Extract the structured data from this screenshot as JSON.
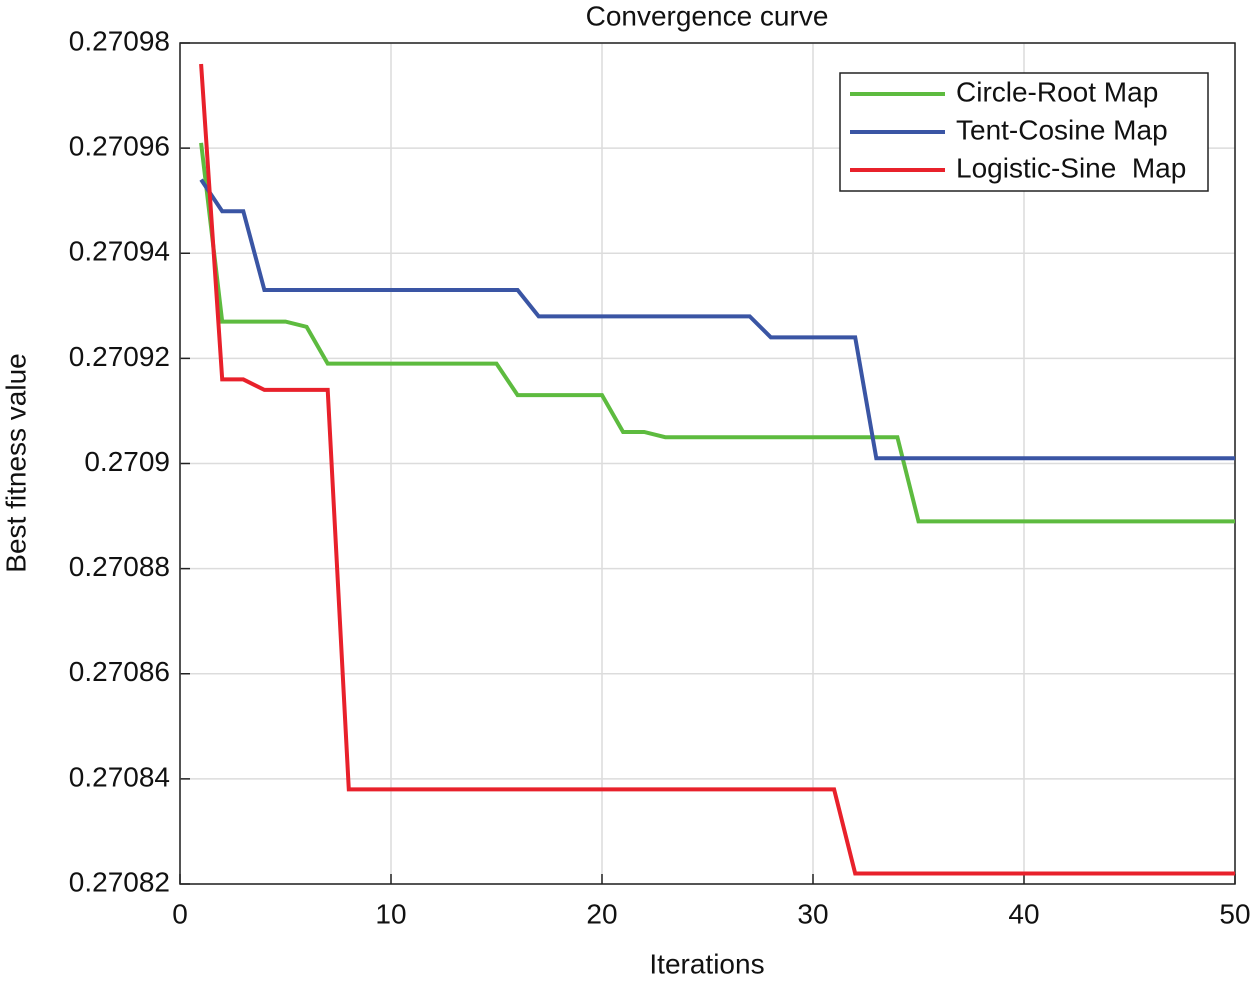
{
  "chart_data": {
    "type": "line",
    "title": "Convergence curve",
    "x_label": "Iterations",
    "y_label": "Best fitness value",
    "x": [
      1,
      2,
      3,
      4,
      5,
      6,
      7,
      8,
      9,
      10,
      11,
      12,
      13,
      14,
      15,
      16,
      17,
      18,
      19,
      20,
      21,
      22,
      23,
      24,
      25,
      26,
      27,
      28,
      29,
      30,
      31,
      32,
      33,
      34,
      35,
      36,
      37,
      38,
      39,
      40,
      41,
      42,
      43,
      44,
      45,
      46,
      47,
      48,
      49,
      50
    ],
    "series": [
      {
        "name": "Circle-Root Map",
        "color": "#5dbb3f",
        "values": [
          0.270961,
          0.270927,
          0.270927,
          0.270927,
          0.270927,
          0.270926,
          0.270919,
          0.270919,
          0.270919,
          0.270919,
          0.270919,
          0.270919,
          0.270919,
          0.270919,
          0.270919,
          0.270913,
          0.270913,
          0.270913,
          0.270913,
          0.270913,
          0.270906,
          0.270906,
          0.270905,
          0.270905,
          0.270905,
          0.270905,
          0.270905,
          0.270905,
          0.270905,
          0.270905,
          0.270905,
          0.270905,
          0.270905,
          0.270905,
          0.270889,
          0.270889,
          0.270889,
          0.270889,
          0.270889,
          0.270889,
          0.270889,
          0.270889,
          0.270889,
          0.270889,
          0.270889,
          0.270889,
          0.270889,
          0.270889,
          0.270889,
          0.270889
        ]
      },
      {
        "name": "Tent-Cosine Map",
        "color": "#3a55a4",
        "values": [
          0.270954,
          0.270948,
          0.270948,
          0.270933,
          0.270933,
          0.270933,
          0.270933,
          0.270933,
          0.270933,
          0.270933,
          0.270933,
          0.270933,
          0.270933,
          0.270933,
          0.270933,
          0.270933,
          0.270928,
          0.270928,
          0.270928,
          0.270928,
          0.270928,
          0.270928,
          0.270928,
          0.270928,
          0.270928,
          0.270928,
          0.270928,
          0.270924,
          0.270924,
          0.270924,
          0.270924,
          0.270924,
          0.270901,
          0.270901,
          0.270901,
          0.270901,
          0.270901,
          0.270901,
          0.270901,
          0.270901,
          0.270901,
          0.270901,
          0.270901,
          0.270901,
          0.270901,
          0.270901,
          0.270901,
          0.270901,
          0.270901,
          0.270901
        ]
      },
      {
        "name": "Logistic-Sine  Map",
        "color": "#e8212b",
        "values": [
          0.270976,
          0.270916,
          0.270916,
          0.270914,
          0.270914,
          0.270914,
          0.270914,
          0.270838,
          0.270838,
          0.270838,
          0.270838,
          0.270838,
          0.270838,
          0.270838,
          0.270838,
          0.270838,
          0.270838,
          0.270838,
          0.270838,
          0.270838,
          0.270838,
          0.270838,
          0.270838,
          0.270838,
          0.270838,
          0.270838,
          0.270838,
          0.270838,
          0.270838,
          0.270838,
          0.270838,
          0.270822,
          0.270822,
          0.270822,
          0.270822,
          0.270822,
          0.270822,
          0.270822,
          0.270822,
          0.270822,
          0.270822,
          0.270822,
          0.270822,
          0.270822,
          0.270822,
          0.270822,
          0.270822,
          0.270822,
          0.270822,
          0.270822
        ]
      }
    ],
    "xlim": [
      0,
      50
    ],
    "xticks": [
      0,
      10,
      20,
      30,
      40,
      50
    ],
    "ylim": [
      0.27082,
      0.27098
    ],
    "yticks": [
      0.27082,
      0.27084,
      0.27086,
      0.27088,
      0.2709,
      0.27092,
      0.27094,
      0.27096,
      0.27098
    ],
    "grid": true,
    "legend": "upper right"
  }
}
